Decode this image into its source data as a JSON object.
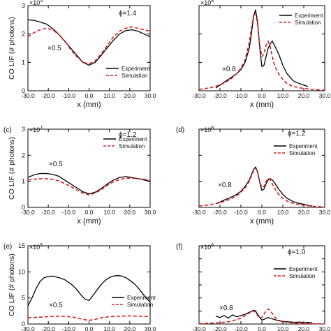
{
  "figure": {
    "shared_ylabel": "CO LIF (# photons)",
    "shared_xlabel": "x (mm)",
    "legend": {
      "experiment": "Experiment",
      "simulation": "Simulation"
    },
    "colors": {
      "experiment": "#000000",
      "simulation": "#d42020"
    }
  },
  "chart_data": [
    {
      "type": "line",
      "panel": "(a)",
      "panel_label": "",
      "phi": "ϕ=1.4",
      "exponent_label": "×10",
      "scale_annotation": "×0.5",
      "xlim": [
        -30,
        30
      ],
      "ylim": [
        0,
        3
      ],
      "xticks": [
        -30,
        -20,
        -10,
        0,
        10,
        20,
        30
      ],
      "xtick_labels": [
        "-30.0",
        "-20.0",
        "-10.0",
        "0.0",
        "10.0",
        "20.0",
        "30.0"
      ],
      "yticks": [
        0,
        1,
        2,
        3
      ],
      "ytick_labels": [
        "0",
        "1",
        "2",
        "3"
      ],
      "xlabel": "x (mm)",
      "ylabel": "CO LIF (# photons)",
      "legend_position": "right",
      "series": [
        {
          "name": "Experiment",
          "style": "solid",
          "x": [
            -30,
            -27,
            -24,
            -21,
            -18,
            -15,
            -12,
            -9,
            -6,
            -3,
            0,
            3,
            6,
            9,
            12,
            15,
            18,
            21,
            24,
            27,
            30
          ],
          "y": [
            2.5,
            2.48,
            2.42,
            2.35,
            2.2,
            2.0,
            1.75,
            1.5,
            1.25,
            1.0,
            0.9,
            1.0,
            1.25,
            1.52,
            1.78,
            2.0,
            2.12,
            2.15,
            2.1,
            2.0,
            1.9
          ]
        },
        {
          "name": "Simulation",
          "style": "dashed",
          "x": [
            -30,
            -27,
            -24,
            -21,
            -18,
            -15,
            -12,
            -9,
            -6,
            -3,
            0,
            3,
            6,
            9,
            12,
            15,
            18,
            21,
            24,
            27,
            30
          ],
          "y": [
            1.9,
            2.05,
            2.15,
            2.2,
            2.15,
            2.0,
            1.75,
            1.45,
            1.2,
            1.0,
            0.95,
            1.05,
            1.3,
            1.6,
            1.9,
            2.1,
            2.2,
            2.25,
            2.2,
            2.15,
            2.1
          ]
        }
      ]
    },
    {
      "type": "line",
      "panel": "(b)",
      "panel_label": "",
      "phi": "",
      "exponent_label": "×10",
      "scale_annotation": "×0.8",
      "xlim": [
        -30,
        30
      ],
      "ylim": [
        0,
        3
      ],
      "xticks": [
        -30,
        -20,
        -10,
        0,
        10,
        20,
        30
      ],
      "xtick_labels": [
        "-30.0",
        "-20.0",
        "-10.0",
        "0.0",
        "10.0",
        "20.0",
        "30.0"
      ],
      "yticks": [
        0,
        1,
        2,
        3
      ],
      "ytick_labels": [],
      "xlabel": "x (mm)",
      "ylabel": "",
      "legend_position": "right",
      "series": [
        {
          "name": "Experiment",
          "style": "solid",
          "x": [
            -22,
            -20,
            -18,
            -15,
            -12,
            -10,
            -8,
            -6,
            -5,
            -4,
            -3,
            -2,
            -1,
            0,
            1,
            2,
            3,
            4,
            5,
            6,
            8,
            10,
            12,
            15,
            18,
            20,
            22
          ],
          "y": [
            0.1,
            0.2,
            0.3,
            0.45,
            0.6,
            0.75,
            1.0,
            1.5,
            2.0,
            2.6,
            2.85,
            2.4,
            1.5,
            0.85,
            0.9,
            1.2,
            1.5,
            1.65,
            1.75,
            1.6,
            1.3,
            0.9,
            0.6,
            0.35,
            0.25,
            0.2,
            0.15
          ]
        },
        {
          "name": "Simulation",
          "style": "dashed",
          "x": [
            -30,
            -25,
            -20,
            -15,
            -12,
            -10,
            -8,
            -6,
            -5,
            -4,
            -3,
            -2,
            -1,
            0,
            1,
            2,
            3,
            4,
            5,
            6,
            8,
            10,
            12,
            15,
            20,
            25,
            30
          ],
          "y": [
            0.05,
            0.1,
            0.2,
            0.4,
            0.6,
            0.8,
            1.1,
            1.7,
            2.2,
            2.65,
            2.75,
            2.3,
            1.6,
            1.2,
            1.3,
            1.6,
            1.75,
            1.55,
            1.2,
            0.9,
            0.6,
            0.4,
            0.25,
            0.15,
            0.08,
            0.04,
            0.02
          ]
        }
      ]
    },
    {
      "type": "line",
      "panel": "(c)",
      "panel_label": "(c)",
      "phi": "ϕ=1.2",
      "exponent_label": "×10",
      "scale_annotation": "×0.5",
      "xlim": [
        -30,
        30
      ],
      "ylim": [
        0,
        3
      ],
      "xticks": [
        -30,
        -20,
        -10,
        0,
        10,
        20,
        30
      ],
      "xtick_labels": [
        "-30.0",
        "-20.0",
        "-10.0",
        "0.0",
        "10.0",
        "20.0",
        "30.0"
      ],
      "yticks": [
        0,
        1,
        2,
        3
      ],
      "ytick_labels": [
        "0",
        "1",
        "2",
        "3"
      ],
      "xlabel": "x (mm)",
      "ylabel": "CO LIF (# photons)",
      "legend_position": "right",
      "series": [
        {
          "name": "Experiment",
          "style": "solid",
          "x": [
            -30,
            -27,
            -24,
            -21,
            -18,
            -15,
            -12,
            -9,
            -6,
            -3,
            0,
            3,
            6,
            9,
            12,
            15,
            18,
            21,
            24,
            27,
            30
          ],
          "y": [
            1.15,
            1.25,
            1.3,
            1.3,
            1.27,
            1.2,
            1.05,
            0.9,
            0.75,
            0.6,
            0.52,
            0.58,
            0.72,
            0.9,
            1.05,
            1.15,
            1.18,
            1.15,
            1.1,
            1.05,
            1.0
          ]
        },
        {
          "name": "Simulation",
          "style": "dashed",
          "x": [
            -30,
            -27,
            -24,
            -21,
            -18,
            -15,
            -12,
            -9,
            -6,
            -3,
            0,
            3,
            6,
            9,
            12,
            15,
            18,
            21,
            24,
            27,
            30
          ],
          "y": [
            1.05,
            1.08,
            1.1,
            1.1,
            1.08,
            1.02,
            0.92,
            0.8,
            0.67,
            0.55,
            0.48,
            0.55,
            0.68,
            0.85,
            0.98,
            1.07,
            1.12,
            1.12,
            1.1,
            1.08,
            1.05
          ]
        }
      ]
    },
    {
      "type": "line",
      "panel": "(d)",
      "panel_label": "(d)",
      "phi": "ϕ=1.2",
      "exponent_label": "×10",
      "scale_annotation": "×0.8",
      "xlim": [
        -30,
        30
      ],
      "ylim": [
        0,
        3
      ],
      "xticks": [
        -30,
        -20,
        -10,
        0,
        10,
        20,
        30
      ],
      "xtick_labels": [
        "-30.0",
        "-20.0",
        "-10.0",
        "0.0",
        "10.0",
        "20.0",
        "30.0"
      ],
      "yticks": [
        0,
        1,
        2,
        3
      ],
      "ytick_labels": [],
      "xlabel": "x (mm)",
      "ylabel": "",
      "legend_position": "right",
      "series": [
        {
          "name": "Experiment",
          "style": "solid",
          "x": [
            -22,
            -20,
            -18,
            -15,
            -12,
            -10,
            -8,
            -6,
            -5,
            -4,
            -3,
            -2,
            -1,
            0,
            1,
            2,
            3,
            4,
            5,
            6,
            8,
            10,
            12,
            15,
            18,
            20,
            22,
            24
          ],
          "y": [
            0.15,
            0.2,
            0.28,
            0.38,
            0.5,
            0.62,
            0.8,
            1.05,
            1.25,
            1.45,
            1.55,
            1.35,
            0.95,
            0.65,
            0.7,
            0.9,
            1.05,
            1.1,
            1.05,
            0.95,
            0.7,
            0.5,
            0.35,
            0.22,
            0.15,
            0.12,
            0.08,
            0.05
          ]
        },
        {
          "name": "Simulation",
          "style": "dashed",
          "x": [
            -30,
            -25,
            -20,
            -15,
            -12,
            -10,
            -8,
            -6,
            -5,
            -4,
            -3,
            -2,
            -1,
            0,
            1,
            2,
            3,
            4,
            5,
            6,
            8,
            10,
            12,
            15,
            20,
            25,
            30
          ],
          "y": [
            0.05,
            0.1,
            0.18,
            0.32,
            0.45,
            0.58,
            0.75,
            1.0,
            1.2,
            1.4,
            1.5,
            1.35,
            1.0,
            0.75,
            0.8,
            1.0,
            1.12,
            1.05,
            0.9,
            0.75,
            0.5,
            0.35,
            0.25,
            0.15,
            0.08,
            0.04,
            0.02
          ]
        }
      ]
    },
    {
      "type": "line",
      "panel": "(e)",
      "panel_label": "(e)",
      "phi": "",
      "exponent_label": "×10",
      "scale_annotation": "×0.5",
      "xlim": [
        -30,
        30
      ],
      "ylim": [
        0,
        15
      ],
      "xticks": [
        -30,
        -20,
        -10,
        0,
        10,
        20,
        30
      ],
      "xtick_labels": [
        "-30.0",
        "-20.0",
        "-10.0",
        "0.0",
        "10.0",
        "20.0",
        "30.0"
      ],
      "yticks": [
        0,
        5,
        10,
        15
      ],
      "ytick_labels": [
        "0",
        "5",
        "10",
        "15"
      ],
      "xlabel": "",
      "ylabel": "CO LIF (# photons)",
      "legend_position": "right",
      "series": [
        {
          "name": "Experiment",
          "style": "solid",
          "x": [
            -30,
            -28,
            -26,
            -24,
            -22,
            -20,
            -18,
            -16,
            -14,
            -12,
            -10,
            -8,
            -6,
            -4,
            -2,
            0,
            2,
            4,
            6,
            8,
            10,
            12,
            14,
            16,
            18,
            20,
            22,
            24,
            26,
            28,
            30
          ],
          "y": [
            3.5,
            5.0,
            6.8,
            8.2,
            8.9,
            9.1,
            9.2,
            9.0,
            8.8,
            8.5,
            8.0,
            7.4,
            6.6,
            5.6,
            4.8,
            4.5,
            5.5,
            6.6,
            7.6,
            8.4,
            8.9,
            9.2,
            9.3,
            9.2,
            8.9,
            8.4,
            7.8,
            7.0,
            6.0,
            5.0,
            4.2
          ]
        },
        {
          "name": "Simulation",
          "style": "dashed",
          "x": [
            -30,
            -25,
            -20,
            -15,
            -10,
            -6,
            -3,
            0,
            3,
            6,
            10,
            15,
            20,
            25,
            30
          ],
          "y": [
            1.2,
            1.3,
            1.4,
            1.5,
            1.4,
            1.2,
            0.9,
            0.7,
            0.9,
            1.2,
            1.4,
            1.5,
            1.55,
            1.5,
            1.4
          ]
        }
      ]
    },
    {
      "type": "line",
      "panel": "(f)",
      "panel_label": "(f)",
      "phi": "ϕ=1.0",
      "exponent_label": "×10",
      "scale_annotation": "×0.8",
      "xlim": [
        -30,
        30
      ],
      "ylim": [
        0,
        12
      ],
      "xticks": [
        -30,
        -20,
        -10,
        0,
        10,
        20,
        30
      ],
      "xtick_labels": [
        "-30.0",
        "-20.0",
        "-10.0",
        "0.0",
        "10.0",
        "20.0",
        "30.0"
      ],
      "yticks": [
        0,
        2,
        4,
        6,
        8,
        10,
        12
      ],
      "ytick_labels": [],
      "xlabel": "",
      "ylabel": "",
      "legend_position": "right",
      "series": [
        {
          "name": "Experiment",
          "style": "solid",
          "x": [
            -22,
            -20,
            -18,
            -16,
            -14,
            -12,
            -10,
            -8,
            -6,
            -4,
            -3,
            -2,
            -1,
            0,
            1,
            2,
            3,
            4,
            6,
            8,
            10,
            12,
            14,
            16,
            18,
            20,
            22,
            24
          ],
          "y": [
            1.2,
            1.0,
            1.3,
            0.9,
            1.4,
            1.1,
            1.3,
            1.5,
            1.8,
            2.1,
            2.0,
            1.5,
            1.0,
            0.6,
            0.7,
            0.9,
            1.0,
            0.9,
            0.7,
            0.5,
            0.4,
            0.35,
            0.3,
            0.25,
            0.3,
            0.2,
            0.25,
            0.2
          ]
        },
        {
          "name": "Simulation",
          "style": "dashed",
          "x": [
            -30,
            -20,
            -15,
            -10,
            -8,
            -6,
            -4,
            -3,
            -2,
            -1,
            0,
            1,
            2,
            3,
            4,
            5,
            6,
            8,
            10,
            15,
            20,
            30
          ],
          "y": [
            0.05,
            0.2,
            0.4,
            0.9,
            1.3,
            1.7,
            2.0,
            1.8,
            1.3,
            0.9,
            1.0,
            1.5,
            2.0,
            2.3,
            2.1,
            1.6,
            1.1,
            0.6,
            0.35,
            0.15,
            0.08,
            0.02
          ]
        }
      ]
    }
  ]
}
